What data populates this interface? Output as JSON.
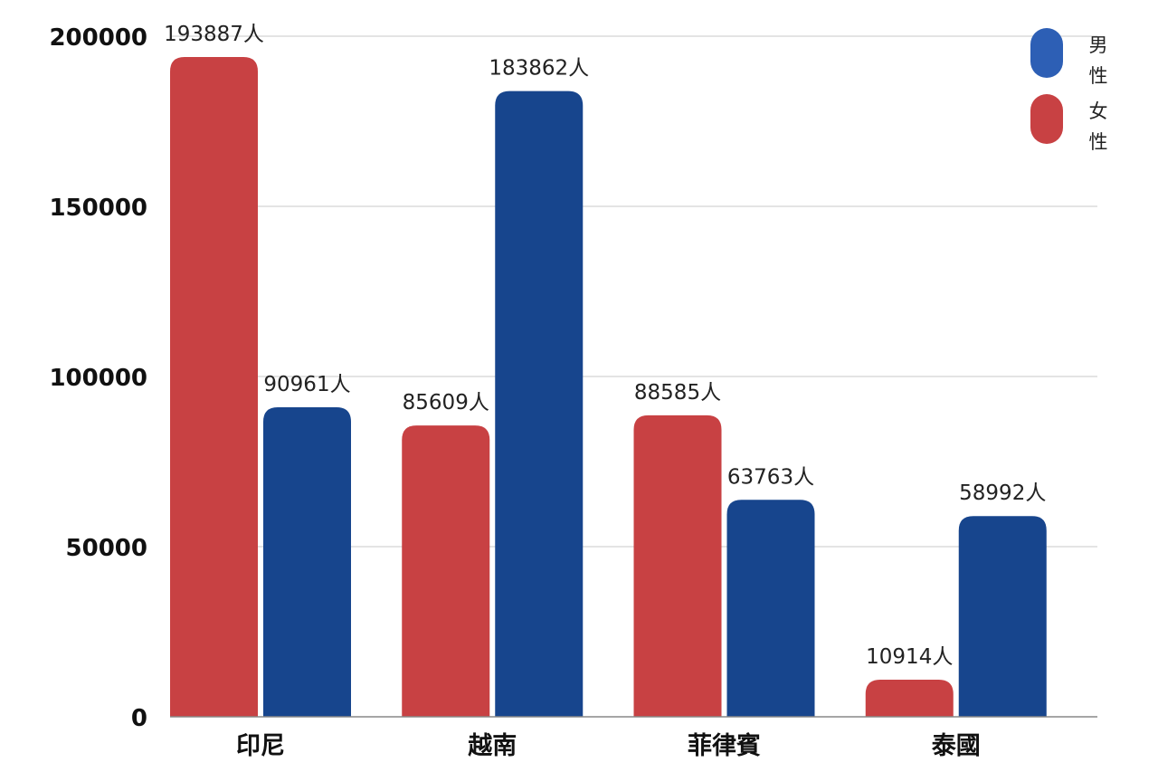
{
  "chart_data": {
    "type": "bar",
    "categories": [
      "印尼",
      "越南",
      "菲律賓",
      "泰國"
    ],
    "series": [
      {
        "name": "女性",
        "color": "#C84143",
        "values": [
          193887,
          85609,
          88585,
          10914
        ],
        "labels": [
          "193887人",
          "85609人",
          "88585人",
          "10914人"
        ]
      },
      {
        "name": "男性",
        "color": "#17458D",
        "values": [
          90961,
          183862,
          63763,
          58992
        ],
        "labels": [
          "90961人",
          "183862人",
          "63763人",
          "58992人"
        ]
      }
    ],
    "yticks": [
      "0",
      "50000",
      "100000",
      "150000",
      "200000"
    ],
    "ylim": [
      0,
      200000
    ],
    "grid": true,
    "legend_position": "top-right",
    "legend": [
      {
        "label": "男",
        "label2": "性",
        "color": "#2D5FB5"
      },
      {
        "label": "女",
        "label2": "性",
        "color": "#C84143"
      }
    ]
  }
}
